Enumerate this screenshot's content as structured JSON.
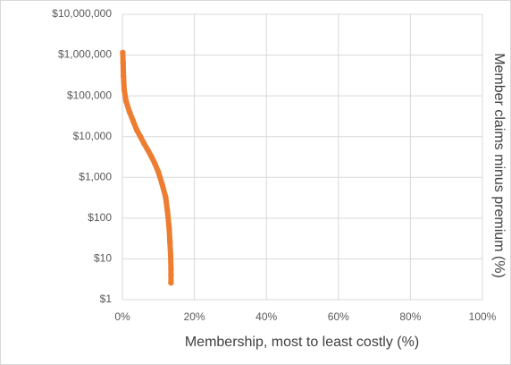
{
  "chart_data": {
    "type": "scatter",
    "x_label": "Membership, most to least costly (%)",
    "y_label": "Member claims minus premium (%)",
    "color": "#ed7d31",
    "log_y": true,
    "grid": true,
    "xlim": [
      0,
      100
    ],
    "xticks": [
      {
        "value": 0,
        "label": "0%"
      },
      {
        "value": 20,
        "label": "20%"
      },
      {
        "value": 40,
        "label": "40%"
      },
      {
        "value": 60,
        "label": "60%"
      },
      {
        "value": 80,
        "label": "80%"
      },
      {
        "value": 100,
        "label": "100%"
      }
    ],
    "ylim": [
      1,
      10000000
    ],
    "yticks": [
      {
        "value": 1,
        "label": "$1"
      },
      {
        "value": 10,
        "label": "$10"
      },
      {
        "value": 100,
        "label": "$100"
      },
      {
        "value": 1000,
        "label": "$1,000"
      },
      {
        "value": 10000,
        "label": "$10,000"
      },
      {
        "value": 100000,
        "label": "$100,000"
      },
      {
        "value": 1000000,
        "label": "$1,000,000"
      },
      {
        "value": 10000000,
        "label": "$10,000,000"
      }
    ],
    "x": [
      0.1,
      0.2,
      0.3,
      0.5,
      1,
      2,
      3,
      4,
      5,
      6,
      7,
      8,
      9,
      10,
      11,
      12,
      12.5,
      13,
      13.2,
      13.4,
      13.5,
      13.5,
      13.5
    ],
    "values": [
      1150000,
      630000,
      300000,
      140000,
      75000,
      40000,
      24000,
      14500,
      10000,
      6800,
      4800,
      3300,
      2200,
      1350,
      700,
      330,
      155,
      56,
      26,
      12,
      5.8,
      4.1,
      2.6
    ]
  }
}
